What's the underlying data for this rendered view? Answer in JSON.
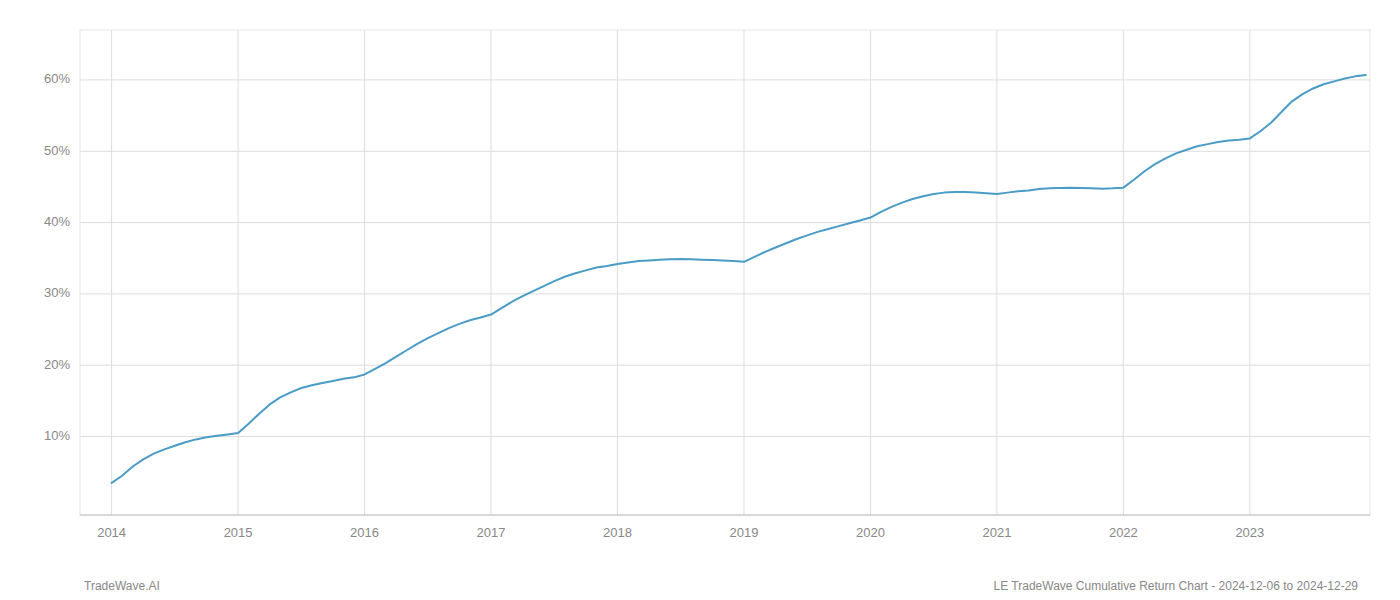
{
  "chart_data": {
    "type": "line",
    "annotations": [
      "TradeWave.AI",
      "LE TradeWave Cumulative Return Chart - 2024-12-06 to 2024-12-29"
    ],
    "color": "#4a9cc7",
    "x": [
      2014.0,
      2014.083,
      2014.167,
      2014.25,
      2014.333,
      2014.417,
      2014.5,
      2014.583,
      2014.667,
      2014.75,
      2014.833,
      2014.917,
      2015.0,
      2015.083,
      2015.167,
      2015.25,
      2015.333,
      2015.417,
      2015.5,
      2015.583,
      2015.667,
      2015.75,
      2015.833,
      2015.917,
      2016.0,
      2016.083,
      2016.167,
      2016.25,
      2016.333,
      2016.417,
      2016.5,
      2016.583,
      2016.667,
      2016.75,
      2016.833,
      2016.917,
      2017.0,
      2017.083,
      2017.167,
      2017.25,
      2017.333,
      2017.417,
      2017.5,
      2017.583,
      2017.667,
      2017.75,
      2017.833,
      2017.917,
      2018.0,
      2018.083,
      2018.167,
      2018.25,
      2018.333,
      2018.417,
      2018.5,
      2018.583,
      2018.667,
      2018.75,
      2018.833,
      2018.917,
      2019.0,
      2019.083,
      2019.167,
      2019.25,
      2019.333,
      2019.417,
      2019.5,
      2019.583,
      2019.667,
      2019.75,
      2019.833,
      2019.917,
      2020.0,
      2020.083,
      2020.167,
      2020.25,
      2020.333,
      2020.417,
      2020.5,
      2020.583,
      2020.667,
      2020.75,
      2020.833,
      2020.917,
      2021.0,
      2021.083,
      2021.167,
      2021.25,
      2021.333,
      2021.417,
      2021.5,
      2021.583,
      2021.667,
      2021.75,
      2021.833,
      2021.917,
      2022.0,
      2022.083,
      2022.167,
      2022.25,
      2022.333,
      2022.417,
      2022.5,
      2022.583,
      2022.667,
      2022.75,
      2022.833,
      2022.917,
      2023.0,
      2023.083,
      2023.167,
      2023.25,
      2023.333,
      2023.417,
      2023.5,
      2023.583,
      2023.667,
      2023.75,
      2023.833,
      2023.917
    ],
    "values": [
      3.5,
      4.5,
      5.8,
      6.8,
      7.6,
      8.2,
      8.7,
      9.2,
      9.6,
      9.9,
      10.1,
      10.3,
      10.5,
      11.8,
      13.2,
      14.5,
      15.5,
      16.2,
      16.8,
      17.2,
      17.5,
      17.8,
      18.1,
      18.3,
      18.7,
      19.5,
      20.3,
      21.2,
      22.1,
      23.0,
      23.8,
      24.5,
      25.2,
      25.8,
      26.3,
      26.7,
      27.1,
      28.0,
      28.9,
      29.7,
      30.4,
      31.1,
      31.8,
      32.4,
      32.9,
      33.3,
      33.7,
      33.9,
      34.2,
      34.4,
      34.6,
      34.7,
      34.8,
      34.85,
      34.9,
      34.85,
      34.8,
      34.75,
      34.7,
      34.6,
      34.5,
      35.2,
      35.9,
      36.5,
      37.1,
      37.7,
      38.2,
      38.7,
      39.1,
      39.5,
      39.9,
      40.3,
      40.7,
      41.5,
      42.2,
      42.8,
      43.3,
      43.7,
      44.0,
      44.2,
      44.3,
      44.3,
      44.2,
      44.1,
      44.0,
      44.2,
      44.4,
      44.5,
      44.7,
      44.8,
      44.85,
      44.9,
      44.85,
      44.8,
      44.75,
      44.8,
      44.9,
      46.0,
      47.2,
      48.2,
      49.0,
      49.7,
      50.2,
      50.7,
      51.0,
      51.3,
      51.5,
      51.6,
      51.8,
      52.8,
      54.0,
      55.5,
      57.0,
      58.0,
      58.8,
      59.4,
      59.8,
      60.2,
      60.5,
      60.7
    ],
    "xlim": [
      2013.75,
      2023.95
    ],
    "ylim": [
      -1,
      67
    ],
    "xticks": [
      2014,
      2015,
      2016,
      2017,
      2018,
      2019,
      2020,
      2021,
      2022,
      2023
    ],
    "yticks": [
      {
        "value": 10,
        "label": "10%"
      },
      {
        "value": 20,
        "label": "20%"
      },
      {
        "value": 30,
        "label": "30%"
      },
      {
        "value": 40,
        "label": "40%"
      },
      {
        "value": 50,
        "label": "50%"
      },
      {
        "value": 60,
        "label": "60%"
      }
    ],
    "grid": true
  }
}
